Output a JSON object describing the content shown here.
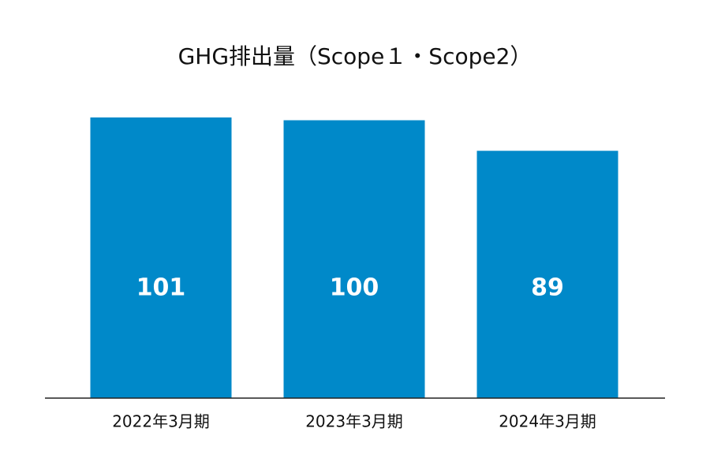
{
  "chart_data": {
    "type": "bar",
    "title": "GHG排出量（Scope１・Scope2）",
    "categories": [
      "2022年3月期",
      "2023年3月期",
      "2024年3月期"
    ],
    "values": [
      101,
      100,
      89
    ],
    "xlabel": "",
    "ylabel": "",
    "ylim": [
      0,
      101
    ],
    "grid": false,
    "legend": "none",
    "colors": {
      "bar": "#0089C9",
      "axis": "#222222",
      "label_on_bar": "#FFFFFF",
      "text": "#111111"
    }
  }
}
